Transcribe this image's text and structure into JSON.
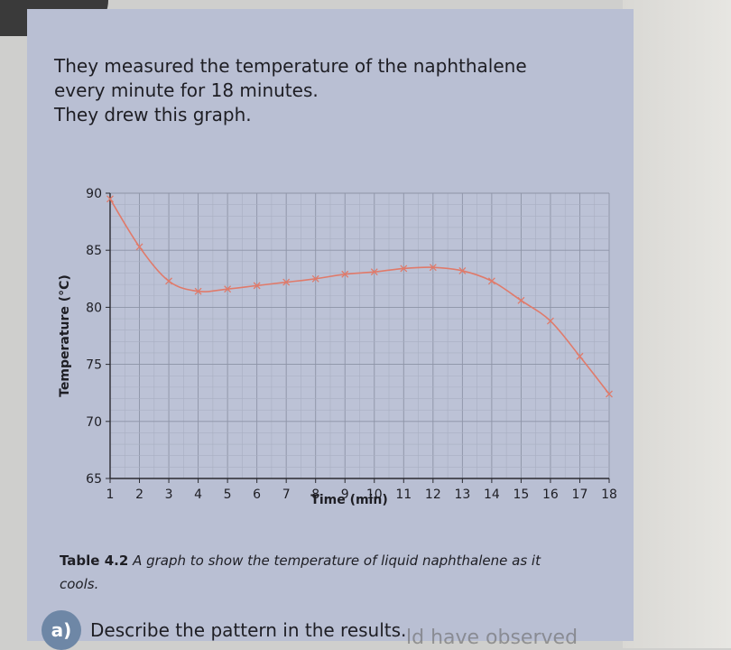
{
  "intro": {
    "line1": "They measured the temperature of the naphthalene",
    "line2": "every minute for 18 minutes.",
    "line3": "They drew this graph."
  },
  "chart_data": {
    "type": "line",
    "xlabel": "Time (min)",
    "ylabel": "Temperature (°C)",
    "x_ticks": [
      1,
      2,
      3,
      4,
      5,
      6,
      7,
      8,
      9,
      10,
      11,
      12,
      13,
      14,
      15,
      16,
      17,
      18
    ],
    "y_ticks": [
      65,
      70,
      75,
      80,
      85,
      90
    ],
    "xlim": [
      1,
      18
    ],
    "ylim": [
      65,
      90
    ],
    "grid": true,
    "line_color": "#e07a6a",
    "series": [
      {
        "x": [
          1,
          2,
          3,
          4,
          5,
          6,
          7,
          8,
          9,
          10,
          11,
          12,
          13,
          14,
          15,
          16,
          17,
          18
        ],
        "y": [
          89.5,
          85.3,
          82.3,
          81.4,
          81.6,
          81.9,
          82.2,
          82.5,
          82.9,
          83.1,
          83.4,
          83.5,
          83.2,
          82.3,
          80.6,
          78.8,
          75.7,
          72.4
        ]
      }
    ]
  },
  "caption": {
    "tag": "Table 4.2",
    "text": "A graph to show the temperature of liquid naphthalene as it cools."
  },
  "question": {
    "marker": "a)",
    "text": "Describe the pattern in the results."
  },
  "bleed_text": "ld have observed"
}
